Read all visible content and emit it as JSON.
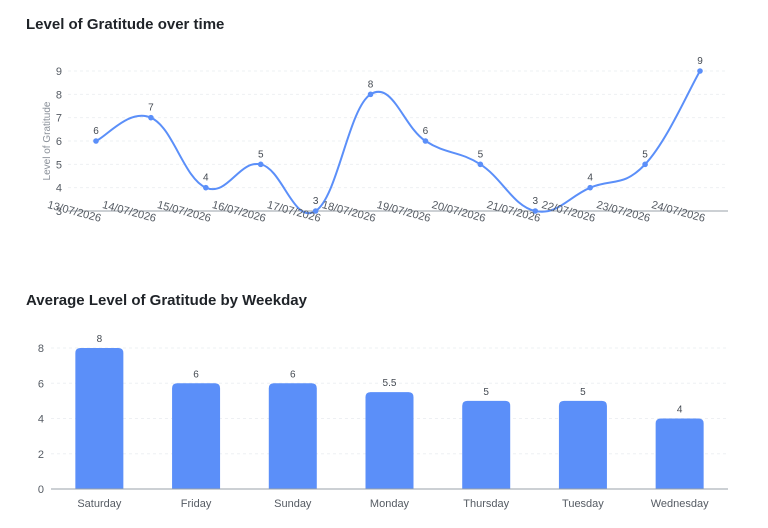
{
  "chart_data": [
    {
      "type": "line",
      "title": "Level of Gratitude over time",
      "ylabel": "Level of Gratitude",
      "xlabel": "",
      "x": [
        "13/07/2026",
        "14/07/2026",
        "15/07/2026",
        "16/07/2026",
        "17/07/2026",
        "18/07/2026",
        "19/07/2026",
        "20/07/2026",
        "21/07/2026",
        "22/07/2026",
        "23/07/2026",
        "24/07/2026"
      ],
      "values": [
        6,
        7,
        4,
        5,
        3,
        8,
        6,
        5,
        3,
        4,
        5,
        9
      ],
      "ylim": [
        3,
        9
      ],
      "yticks": [
        3,
        4,
        5,
        6,
        7,
        8,
        9
      ],
      "grid": true,
      "color": "#5b8ff9"
    },
    {
      "type": "bar",
      "title": "Average Level of Gratitude by Weekday",
      "xlabel": "",
      "ylabel": "",
      "categories": [
        "Saturday",
        "Friday",
        "Sunday",
        "Monday",
        "Thursday",
        "Tuesday",
        "Wednesday"
      ],
      "values": [
        8,
        6,
        6,
        5.5,
        5,
        5,
        4
      ],
      "labels": [
        "8",
        "6",
        "6",
        "5.5",
        "5",
        "5",
        "4"
      ],
      "ylim": [
        0,
        8
      ],
      "yticks": [
        0,
        2,
        4,
        6,
        8
      ],
      "grid": true,
      "color": "#5b8ff9"
    }
  ]
}
